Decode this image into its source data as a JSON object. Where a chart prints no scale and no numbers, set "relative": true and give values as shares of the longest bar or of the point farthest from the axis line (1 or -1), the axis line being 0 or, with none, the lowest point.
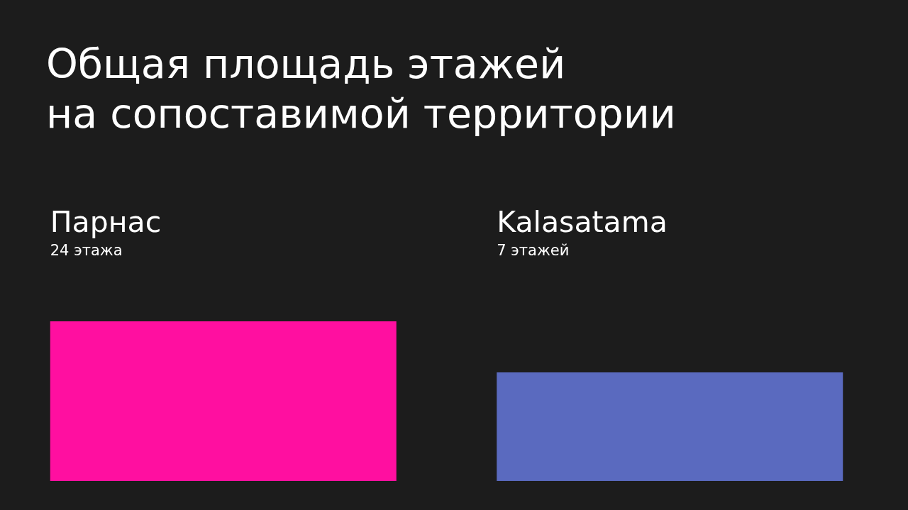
{
  "chart_data": {
    "type": "bar",
    "title": "Общая площадь этажей\nна сопоставимой территории",
    "categories": [
      "Парнас",
      "Kalasatama"
    ],
    "values": [
      1,
      0.68
    ],
    "colors": [
      "#ff0fa0",
      "#5a6abf"
    ],
    "relative": true,
    "annotations": [
      "24 этажа",
      "7 этажей"
    ]
  }
}
